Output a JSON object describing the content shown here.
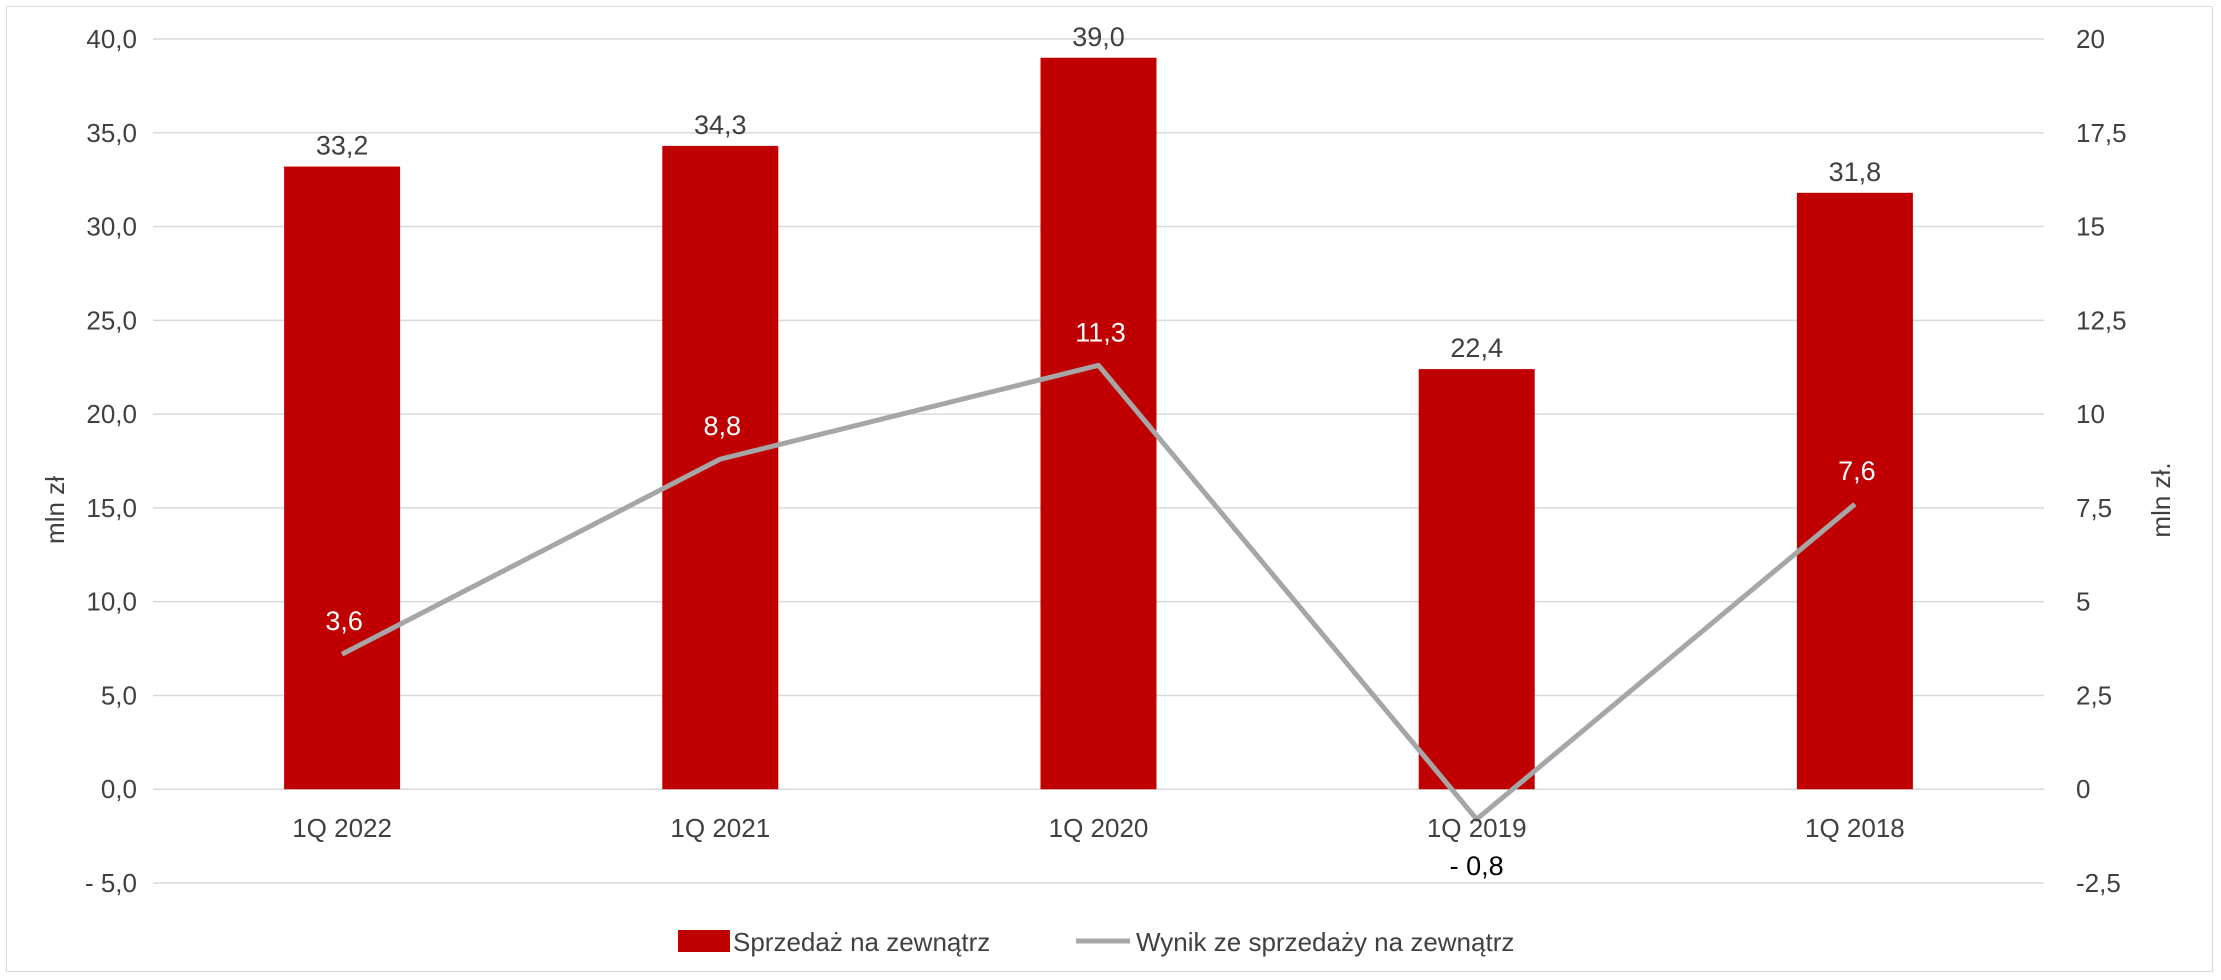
{
  "chart_data": {
    "type": "bar",
    "categories": [
      "1Q 2022",
      "1Q 2021",
      "1Q 2020",
      "1Q 2019",
      "1Q 2018"
    ],
    "series": [
      {
        "name": "Sprzedaż na zewnątrz",
        "type": "bar",
        "axis": "left",
        "color": "#C00000",
        "values": [
          33.2,
          34.3,
          39.0,
          22.4,
          31.8
        ],
        "labels": [
          "33,2",
          "34,3",
          "39,0",
          "22,4",
          "31,8"
        ]
      },
      {
        "name": "Wynik ze sprzedaży na zewnątrz",
        "type": "line",
        "axis": "right",
        "color": "#A6A6A6",
        "values": [
          3.6,
          8.8,
          11.3,
          -0.8,
          7.6
        ],
        "labels": [
          "3,6",
          "8,8",
          "11,3",
          "- 0,8",
          "7,6"
        ]
      }
    ],
    "ylabel": "mln zł",
    "y2label": "mln zł.",
    "ylim": [
      -5,
      40
    ],
    "y2lim": [
      -2.5,
      20
    ],
    "yticks": [
      -5,
      0,
      5,
      10,
      15,
      20,
      25,
      30,
      35,
      40
    ],
    "ytick_labels": [
      "- 5,0",
      "0,0",
      "5,0",
      "10,0",
      "15,0",
      "20,0",
      "25,0",
      "30,0",
      "35,0",
      "40,0"
    ],
    "y2ticks": [
      -2.5,
      0,
      2.5,
      5,
      7.5,
      10,
      12.5,
      15,
      17.5,
      20
    ],
    "y2tick_labels": [
      "-2,5",
      "0",
      "2,5",
      "5",
      "7,5",
      "10",
      "12,5",
      "15",
      "17,5",
      "20"
    ],
    "grid": true,
    "legend": "bottom-center"
  }
}
